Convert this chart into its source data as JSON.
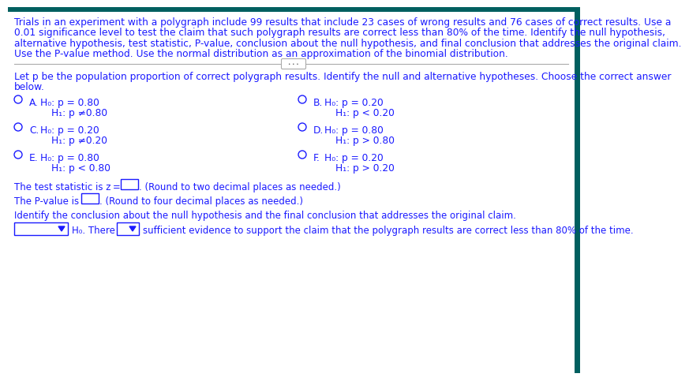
{
  "bg_color": "#ffffff",
  "header_bg": "#005f5f",
  "text_color": "#1a1aff",
  "font_size_body": 8.8,
  "font_size_small": 8.5,
  "intro_text_lines": [
    "Trials in an experiment with a polygraph include 99 results that include 23 cases of wrong results and 76 cases of correct results. Use a",
    "0.01 significance level to test the claim that such polygraph results are correct less than 80% of the time. Identify the null hypothesis,",
    "alternative hypothesis, test statistic, P-value, conclusion about the null hypothesis, and final conclusion that addresses the original claim.",
    "Use the P-value method. Use the normal distribution as an approximation of the binomial distribution."
  ],
  "let_p_lines": [
    "Let p be the population proportion of correct polygraph results. Identify the null and alternative hypotheses. Choose the correct answer",
    "below."
  ],
  "options_left": [
    {
      "label": "A.",
      "h0": "H₀: p = 0.80",
      "h1": "H₁: p ≠0.80"
    },
    {
      "label": "C.",
      "h0": "H₀: p = 0.20",
      "h1": "H₁: p ≠0.20"
    },
    {
      "label": "E.",
      "h0": "H₀: p = 0.80",
      "h1": "H₁: p < 0.80"
    }
  ],
  "options_right": [
    {
      "label": "B.",
      "h0": "H₀: p = 0.20",
      "h1": "H₁: p < 0.20"
    },
    {
      "label": "D.",
      "h0": "H₀: p = 0.80",
      "h1": "H₁: p > 0.80"
    },
    {
      "label": "F.",
      "h0": "H₀: p = 0.20",
      "h1": "H₁: p > 0.20"
    }
  ],
  "test_stat_prefix": "The test statistic is z = ",
  "test_stat_suffix": ". (Round to two decimal places as needed.)",
  "pvalue_prefix": "The P-value is",
  "pvalue_suffix": ". (Round to four decimal places as needed.)",
  "conclusion_line": "Identify the conclusion about the null hypothesis and the final conclusion that addresses the original claim.",
  "final_suffix": "sufficient evidence to support the claim that the polygraph results are correct less than 80% of the time.",
  "h0_there": "H₀. There",
  "divider_color": "#aaaaaa",
  "box_color": "#1a1aff",
  "circle_color": "#1a1aff"
}
